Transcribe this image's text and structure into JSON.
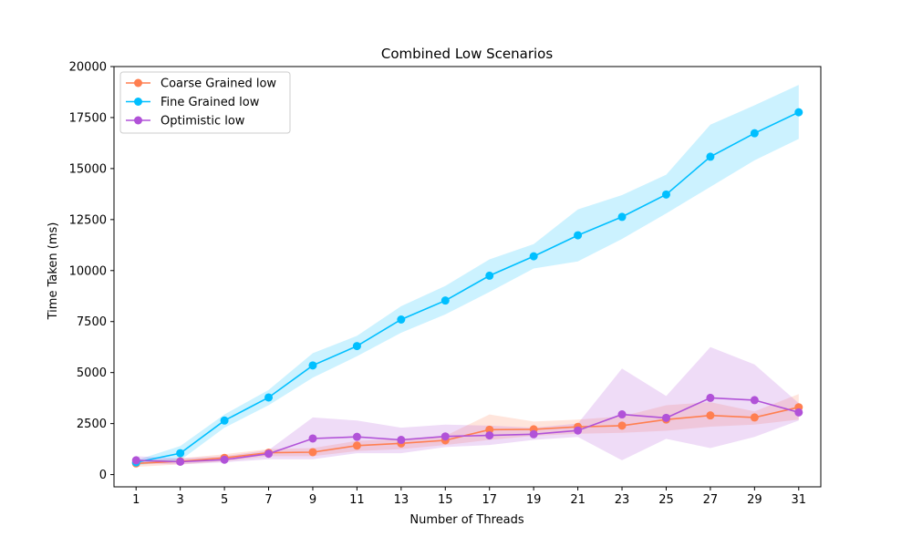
{
  "chart_data": {
    "type": "line",
    "title": "Combined Low Scenarios",
    "xlabel": "Number of Threads",
    "ylabel": "Time Taken (ms)",
    "xlim": [
      0,
      32
    ],
    "ylim": [
      -600,
      20000
    ],
    "x_ticks": [
      1,
      3,
      5,
      7,
      9,
      11,
      13,
      15,
      17,
      19,
      21,
      23,
      25,
      27,
      29,
      31
    ],
    "y_ticks": [
      0,
      2500,
      5000,
      7500,
      10000,
      12500,
      15000,
      17500,
      20000
    ],
    "grid": false,
    "legend_position": "top-left",
    "x": [
      1,
      3,
      5,
      7,
      9,
      11,
      13,
      15,
      17,
      19,
      21,
      23,
      25,
      27,
      29,
      31
    ],
    "series": [
      {
        "name": "Coarse Grained low",
        "color": "#ff7f50",
        "values": [
          550,
          650,
          820,
          1070,
          1100,
          1420,
          1530,
          1680,
          2200,
          2220,
          2340,
          2400,
          2700,
          2900,
          2800,
          3300
        ],
        "upper": [
          650,
          800,
          1000,
          1250,
          1300,
          1650,
          1750,
          1900,
          2950,
          2600,
          2700,
          2850,
          3400,
          3550,
          3100,
          3950
        ],
        "lower": [
          380,
          500,
          650,
          900,
          900,
          1150,
          1250,
          1450,
          1700,
          1900,
          2000,
          2050,
          2150,
          2350,
          2450,
          2700
        ]
      },
      {
        "name": "Fine Grained low",
        "color": "#00bfff",
        "values": [
          600,
          1050,
          2650,
          3780,
          5350,
          6300,
          7600,
          8530,
          9750,
          10700,
          11730,
          12630,
          13730,
          15580,
          16730,
          17760
        ],
        "upper": [
          700,
          1400,
          2950,
          4150,
          5950,
          6800,
          8250,
          9250,
          10550,
          11300,
          13000,
          13700,
          14700,
          17150,
          18100,
          19100
        ],
        "lower": [
          450,
          700,
          2300,
          3400,
          4750,
          5800,
          6950,
          7850,
          8950,
          10100,
          10450,
          11550,
          12800,
          14100,
          15400,
          16450
        ]
      },
      {
        "name": "Optimistic low",
        "color": "#b152d8",
        "values": [
          700,
          630,
          730,
          1020,
          1770,
          1850,
          1700,
          1870,
          1920,
          1980,
          2160,
          2950,
          2780,
          3760,
          3650,
          3050
        ],
        "upper": [
          900,
          800,
          900,
          1200,
          2800,
          2650,
          2300,
          2450,
          2400,
          2300,
          2500,
          5200,
          3850,
          6250,
          5400,
          3500
        ],
        "lower": [
          550,
          500,
          600,
          750,
          750,
          1050,
          1050,
          1350,
          1450,
          1700,
          1850,
          700,
          1750,
          1300,
          1850,
          2650
        ]
      }
    ]
  }
}
